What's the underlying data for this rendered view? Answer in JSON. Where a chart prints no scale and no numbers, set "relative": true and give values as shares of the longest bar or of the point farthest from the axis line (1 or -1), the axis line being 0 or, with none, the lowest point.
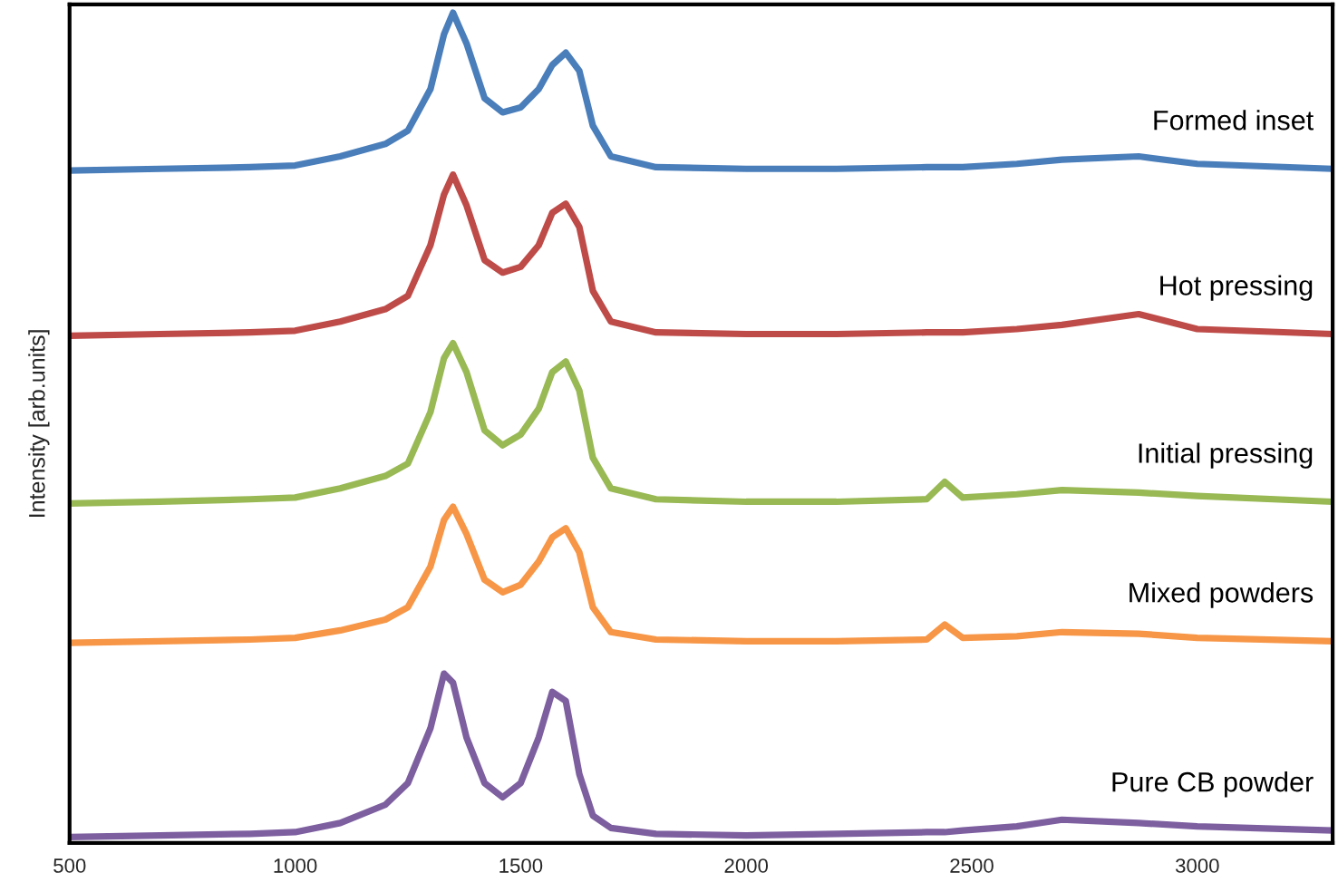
{
  "chart_data": {
    "type": "line",
    "relative": true,
    "ylabel": "Intensity [arb.units]",
    "x": [
      500,
      700,
      900,
      1000,
      1100,
      1200,
      1250,
      1300,
      1330,
      1350,
      1380,
      1420,
      1460,
      1500,
      1540,
      1570,
      1600,
      1630,
      1660,
      1700,
      1800,
      2000,
      2200,
      2400,
      2440,
      2480,
      2600,
      2700,
      2870,
      3000,
      3300
    ],
    "xlim": [
      500,
      3300
    ],
    "xticks": [
      500,
      1000,
      1500,
      2000,
      2500,
      3000
    ],
    "grid": false,
    "legend": false,
    "marker": "none",
    "line_style": "solid",
    "series": [
      {
        "name": "Formed inset",
        "color": "#4a7ebb",
        "values": [
          0.81,
          0.812,
          0.814,
          0.816,
          0.827,
          0.842,
          0.858,
          0.908,
          0.974,
          1.0,
          0.963,
          0.897,
          0.88,
          0.886,
          0.908,
          0.937,
          0.952,
          0.93,
          0.864,
          0.827,
          0.814,
          0.812,
          0.812,
          0.814,
          0.814,
          0.814,
          0.818,
          0.823,
          0.827,
          0.818,
          0.812
        ]
      },
      {
        "name": "Hot pressing",
        "color": "#be4b48",
        "values": [
          0.611,
          0.613,
          0.615,
          0.617,
          0.628,
          0.643,
          0.659,
          0.72,
          0.781,
          0.805,
          0.768,
          0.702,
          0.687,
          0.694,
          0.72,
          0.759,
          0.77,
          0.742,
          0.665,
          0.628,
          0.615,
          0.613,
          0.613,
          0.615,
          0.615,
          0.615,
          0.619,
          0.624,
          0.637,
          0.619,
          0.613
        ]
      },
      {
        "name": "Initial pressing",
        "color": "#98b954",
        "values": [
          0.409,
          0.411,
          0.414,
          0.416,
          0.427,
          0.442,
          0.457,
          0.519,
          0.584,
          0.602,
          0.567,
          0.497,
          0.479,
          0.492,
          0.523,
          0.567,
          0.58,
          0.545,
          0.464,
          0.427,
          0.414,
          0.411,
          0.411,
          0.414,
          0.435,
          0.416,
          0.42,
          0.425,
          0.422,
          0.418,
          0.411
        ]
      },
      {
        "name": "Mixed powders",
        "color": "#f79646",
        "values": [
          0.241,
          0.243,
          0.245,
          0.247,
          0.256,
          0.269,
          0.284,
          0.333,
          0.389,
          0.405,
          0.372,
          0.317,
          0.302,
          0.311,
          0.339,
          0.368,
          0.379,
          0.35,
          0.284,
          0.254,
          0.245,
          0.243,
          0.243,
          0.245,
          0.263,
          0.247,
          0.249,
          0.254,
          0.252,
          0.247,
          0.243
        ]
      },
      {
        "name": "Pure CB powder",
        "color": "#7d5fa0",
        "values": [
          0.007,
          0.009,
          0.011,
          0.013,
          0.024,
          0.046,
          0.072,
          0.138,
          0.204,
          0.193,
          0.127,
          0.072,
          0.055,
          0.072,
          0.127,
          0.182,
          0.171,
          0.083,
          0.033,
          0.018,
          0.011,
          0.009,
          0.011,
          0.013,
          0.013,
          0.015,
          0.02,
          0.028,
          0.024,
          0.02,
          0.015
        ]
      }
    ]
  }
}
